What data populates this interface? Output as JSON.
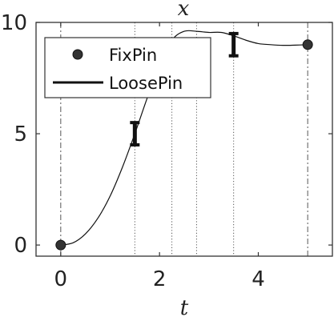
{
  "chart_data": {
    "type": "line",
    "title": "x",
    "xlabel": "t",
    "ylabel": "",
    "xlim": [
      -0.5,
      5.5
    ],
    "ylim": [
      -0.5,
      10
    ],
    "x_ticks": [
      0,
      2,
      4
    ],
    "y_ticks": [
      0,
      5,
      10
    ],
    "grid": false,
    "legend_position": "top-left",
    "series": [
      {
        "name": "FixPin",
        "style": "markers",
        "color": "#333333",
        "points": [
          [
            0,
            0
          ],
          [
            5,
            9
          ]
        ]
      },
      {
        "name": "LoosePin",
        "style": "line",
        "color": "#111111",
        "points": [
          [
            0,
            0
          ],
          [
            0.25,
            0.1
          ],
          [
            0.5,
            0.5
          ],
          [
            0.75,
            1.2
          ],
          [
            1.0,
            2.2
          ],
          [
            1.25,
            3.5
          ],
          [
            1.5,
            5.0
          ],
          [
            1.75,
            6.6
          ],
          [
            2.0,
            8.1
          ],
          [
            2.25,
            9.2
          ],
          [
            2.5,
            9.6
          ],
          [
            2.75,
            9.6
          ],
          [
            3.0,
            9.55
          ],
          [
            3.25,
            9.55
          ],
          [
            3.5,
            9.4
          ],
          [
            3.75,
            9.2
          ],
          [
            4.0,
            9.05
          ],
          [
            4.25,
            9.0
          ],
          [
            4.5,
            8.97
          ],
          [
            4.75,
            8.98
          ],
          [
            5.0,
            9.0
          ]
        ]
      }
    ],
    "error_bars": [
      {
        "x": 1.5,
        "low": 4.5,
        "high": 5.5
      },
      {
        "x": 3.5,
        "low": 8.5,
        "high": 9.5
      }
    ],
    "dashdot_lines_x": [
      0,
      5
    ],
    "dotted_lines_x": [
      1.5,
      2.25,
      2.75,
      3.5
    ],
    "colors": {
      "axis": "#333333",
      "line": "#111111",
      "marker": "#333333",
      "guide": "#555555"
    }
  }
}
